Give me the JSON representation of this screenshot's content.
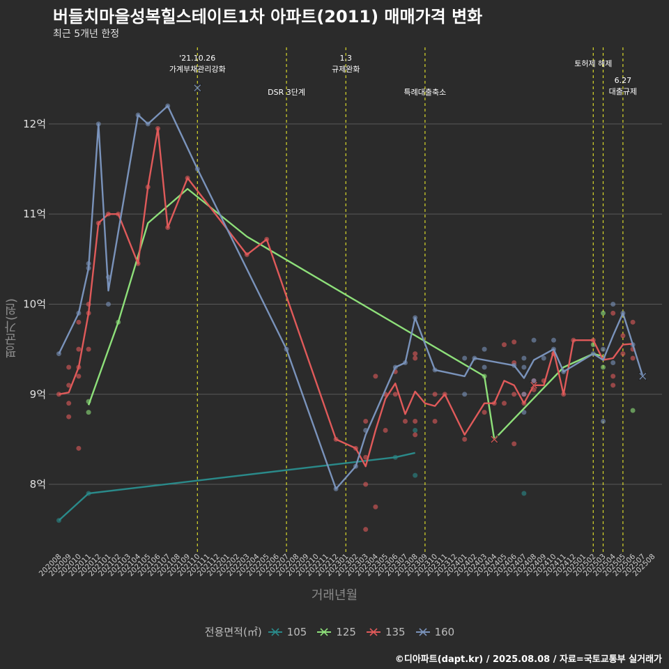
{
  "chart_data": {
    "type": "line",
    "title": "버들치마을성복힐스테이트1차 아파트(2011) 매매가격 변화",
    "subtitle": "최근 5개년 한정",
    "xlabel": "거래년월",
    "ylabel": "평균가(원)",
    "caption": "©디아파트(dapt.kr) / 2025.08.08 / 자료=국토교통부 실거래가",
    "legend_title": "전용면적(㎡)",
    "ylim": [
      7.25,
      12.85
    ],
    "yticks": [
      {
        "v": 8,
        "label": "8억"
      },
      {
        "v": 9,
        "label": "9억"
      },
      {
        "v": 10,
        "label": "10억"
      },
      {
        "v": 11,
        "label": "11억"
      },
      {
        "v": 12,
        "label": "12억"
      }
    ],
    "months": [
      "202008",
      "202009",
      "202010",
      "202011",
      "202012",
      "202101",
      "202102",
      "202103",
      "202104",
      "202105",
      "202106",
      "202107",
      "202108",
      "202109",
      "202110",
      "202111",
      "202112",
      "202201",
      "202202",
      "202203",
      "202204",
      "202205",
      "202206",
      "202207",
      "202208",
      "202209",
      "202210",
      "202211",
      "202212",
      "202301",
      "202302",
      "202303",
      "202304",
      "202305",
      "202306",
      "202307",
      "202308",
      "202309",
      "202310",
      "202311",
      "202312",
      "202401",
      "202402",
      "202403",
      "202404",
      "202405",
      "202406",
      "202407",
      "202408",
      "202409",
      "202410",
      "202411",
      "202412",
      "202501",
      "202502",
      "202503",
      "202504",
      "202505",
      "202506",
      "202507",
      "202508"
    ],
    "events": [
      {
        "date": 14.0,
        "label": "'21.10.26\n가계부채관리강화",
        "pos": "high"
      },
      {
        "date": 23.0,
        "label": "DSR 3단계",
        "pos": "low"
      },
      {
        "date": 29.0,
        "label": "1.3\n규제완화",
        "pos": "high"
      },
      {
        "date": 37.0,
        "label": "특례대출축소",
        "pos": "low"
      },
      {
        "date": 54.0,
        "label": "토허제 해제",
        "pos": "high"
      },
      {
        "date": 55.0,
        "label": "",
        "pos": "none"
      },
      {
        "date": 57.0,
        "label": "6.27\n대출규제",
        "pos": "mid"
      }
    ],
    "series": [
      {
        "name": "105",
        "color": "#2a8a8a",
        "line": [
          [
            0,
            7.6
          ],
          [
            3,
            7.9
          ],
          [
            34,
            8.3
          ],
          [
            36,
            8.35
          ]
        ],
        "points": [
          [
            0,
            7.6
          ],
          [
            3,
            7.9
          ],
          [
            34,
            8.3
          ],
          [
            36,
            8.1
          ],
          [
            36,
            8.6
          ],
          [
            47,
            7.9
          ]
        ],
        "markers": []
      },
      {
        "name": "125",
        "color": "#8ee07a",
        "line": [
          [
            3,
            8.88
          ],
          [
            6,
            9.8
          ],
          [
            9,
            10.9
          ],
          [
            13,
            11.28
          ],
          [
            19,
            10.75
          ],
          [
            43,
            9.2
          ],
          [
            44,
            8.5
          ],
          [
            51,
            9.3
          ],
          [
            54,
            9.45
          ],
          [
            55,
            9.42
          ]
        ],
        "points": [
          [
            3,
            8.8
          ],
          [
            3,
            8.92
          ],
          [
            6,
            9.8
          ],
          [
            43,
            9.2
          ],
          [
            54,
            9.55
          ],
          [
            55,
            9.9
          ],
          [
            55,
            9.3
          ],
          [
            58,
            8.82
          ]
        ],
        "markers": [
          [
            44,
            8.5
          ]
        ]
      },
      {
        "name": "135",
        "color": "#e05a5a",
        "line": [
          [
            0,
            9.0
          ],
          [
            1,
            9.02
          ],
          [
            2,
            9.3
          ],
          [
            3,
            9.9
          ],
          [
            4,
            10.9
          ],
          [
            5,
            11.0
          ],
          [
            6,
            11.0
          ],
          [
            8,
            10.45
          ],
          [
            9,
            11.3
          ],
          [
            10,
            11.95
          ],
          [
            11,
            10.85
          ],
          [
            13,
            11.4
          ],
          [
            19,
            10.55
          ],
          [
            21,
            10.72
          ],
          [
            28,
            8.5
          ],
          [
            30,
            8.4
          ],
          [
            31,
            8.2
          ],
          [
            32,
            8.6
          ],
          [
            33,
            8.95
          ],
          [
            34,
            9.12
          ],
          [
            35,
            8.78
          ],
          [
            36,
            9.03
          ],
          [
            37,
            8.9
          ],
          [
            38,
            8.87
          ],
          [
            39,
            9.0
          ],
          [
            41,
            8.55
          ],
          [
            43,
            8.9
          ],
          [
            44,
            8.9
          ],
          [
            45,
            9.15
          ],
          [
            46,
            9.1
          ],
          [
            47,
            8.9
          ],
          [
            48,
            9.1
          ],
          [
            49,
            9.1
          ],
          [
            50,
            9.48
          ],
          [
            51,
            9.0
          ],
          [
            52,
            9.6
          ],
          [
            54,
            9.6
          ],
          [
            55,
            9.38
          ],
          [
            56,
            9.4
          ],
          [
            57,
            9.55
          ],
          [
            58,
            9.56
          ]
        ],
        "points": [
          [
            0,
            9.0
          ],
          [
            1,
            8.75
          ],
          [
            1,
            8.9
          ],
          [
            1,
            9.1
          ],
          [
            1,
            9.3
          ],
          [
            2,
            8.4
          ],
          [
            2,
            9.2
          ],
          [
            2,
            9.3
          ],
          [
            2,
            9.5
          ],
          [
            2,
            9.8
          ],
          [
            3,
            9.5
          ],
          [
            3,
            9.9
          ],
          [
            3,
            10.0
          ],
          [
            4,
            10.9
          ],
          [
            5,
            11.0
          ],
          [
            6,
            11.0
          ],
          [
            8,
            10.45
          ],
          [
            9,
            11.3
          ],
          [
            10,
            11.95
          ],
          [
            11,
            10.85
          ],
          [
            13,
            11.4
          ],
          [
            19,
            10.55
          ],
          [
            21,
            10.72
          ],
          [
            28,
            8.5
          ],
          [
            30,
            8.4
          ],
          [
            31,
            7.5
          ],
          [
            31,
            8.0
          ],
          [
            31,
            8.3
          ],
          [
            31,
            8.7
          ],
          [
            32,
            7.75
          ],
          [
            32,
            9.2
          ],
          [
            33,
            8.6
          ],
          [
            33,
            9.0
          ],
          [
            34,
            9.0
          ],
          [
            34,
            9.25
          ],
          [
            35,
            8.7
          ],
          [
            36,
            8.55
          ],
          [
            36,
            8.7
          ],
          [
            36,
            9.4
          ],
          [
            36,
            9.45
          ],
          [
            38,
            8.7
          ],
          [
            38,
            9.0
          ],
          [
            39,
            9.0
          ],
          [
            41,
            8.5
          ],
          [
            43,
            8.8
          ],
          [
            44,
            8.9
          ],
          [
            45,
            8.9
          ],
          [
            45,
            9.55
          ],
          [
            46,
            8.45
          ],
          [
            46,
            9.0
          ],
          [
            46,
            9.35
          ],
          [
            46,
            9.58
          ],
          [
            47,
            8.9
          ],
          [
            47,
            9.0
          ],
          [
            48,
            9.05
          ],
          [
            48,
            9.15
          ],
          [
            49,
            9.15
          ],
          [
            50,
            9.45
          ],
          [
            51,
            9.0
          ],
          [
            52,
            9.6
          ],
          [
            54,
            9.6
          ],
          [
            55,
            9.4
          ],
          [
            56,
            9.1
          ],
          [
            56,
            9.2
          ],
          [
            56,
            9.9
          ],
          [
            57,
            9.45
          ],
          [
            57,
            9.65
          ],
          [
            58,
            9.4
          ],
          [
            58,
            9.5
          ],
          [
            58,
            9.8
          ]
        ],
        "markers": [
          [
            44,
            8.5
          ],
          [
            48,
            9.1
          ]
        ]
      },
      {
        "name": "160",
        "color": "#7a93bb",
        "line": [
          [
            0,
            9.45
          ],
          [
            2,
            9.9
          ],
          [
            3,
            10.4
          ],
          [
            4,
            12.0
          ],
          [
            5,
            10.15
          ],
          [
            6,
            10.8
          ],
          [
            8,
            12.1
          ],
          [
            9,
            12.0
          ],
          [
            11,
            12.2
          ],
          [
            14,
            11.5
          ],
          [
            23,
            9.5
          ],
          [
            28,
            7.95
          ],
          [
            30,
            8.2
          ],
          [
            31,
            8.55
          ],
          [
            34,
            9.3
          ],
          [
            35,
            9.35
          ],
          [
            36,
            9.85
          ],
          [
            38,
            9.27
          ],
          [
            41,
            9.2
          ],
          [
            42,
            9.4
          ],
          [
            46,
            9.32
          ],
          [
            47,
            9.18
          ],
          [
            48,
            9.38
          ],
          [
            50,
            9.5
          ],
          [
            51,
            9.25
          ],
          [
            54,
            9.45
          ],
          [
            55,
            9.38
          ],
          [
            56,
            9.65
          ],
          [
            57,
            9.9
          ],
          [
            58,
            9.55
          ],
          [
            59,
            9.2
          ]
        ],
        "points": [
          [
            0,
            9.45
          ],
          [
            2,
            9.9
          ],
          [
            3,
            10.4
          ],
          [
            3,
            10.45
          ],
          [
            4,
            12.0
          ],
          [
            5,
            10.0
          ],
          [
            5,
            10.3
          ],
          [
            8,
            12.1
          ],
          [
            9,
            12.0
          ],
          [
            11,
            12.2
          ],
          [
            14,
            11.5
          ],
          [
            23,
            9.5
          ],
          [
            28,
            7.95
          ],
          [
            30,
            8.2
          ],
          [
            31,
            8.6
          ],
          [
            34,
            9.3
          ],
          [
            35,
            9.35
          ],
          [
            36,
            9.85
          ],
          [
            38,
            9.27
          ],
          [
            41,
            9.0
          ],
          [
            41,
            9.4
          ],
          [
            42,
            9.4
          ],
          [
            43,
            9.3
          ],
          [
            43,
            9.5
          ],
          [
            46,
            9.32
          ],
          [
            47,
            8.8
          ],
          [
            47,
            9.0
          ],
          [
            47,
            9.3
          ],
          [
            47,
            9.4
          ],
          [
            48,
            9.15
          ],
          [
            48,
            9.6
          ],
          [
            49,
            9.4
          ],
          [
            50,
            9.6
          ],
          [
            50,
            9.5
          ],
          [
            51,
            9.25
          ],
          [
            54,
            9.45
          ],
          [
            55,
            8.7
          ],
          [
            55,
            9.5
          ],
          [
            56,
            9.35
          ],
          [
            56,
            10.0
          ],
          [
            57,
            9.9
          ],
          [
            58,
            9.55
          ]
        ],
        "markers": [
          [
            14,
            12.4
          ],
          [
            59,
            9.2
          ]
        ]
      }
    ]
  }
}
